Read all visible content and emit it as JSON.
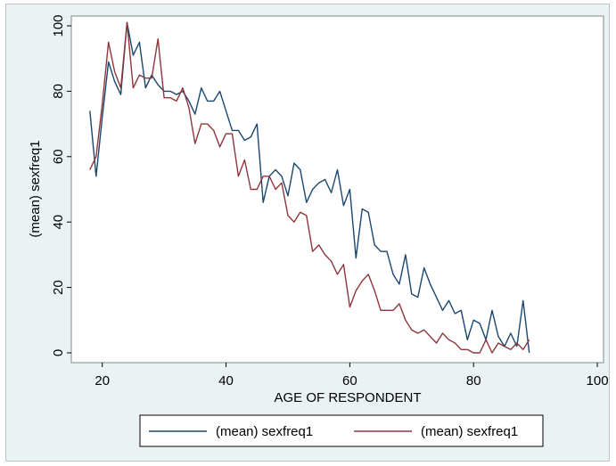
{
  "chart_data": {
    "type": "line",
    "title": "",
    "xlabel": "AGE OF RESPONDENT",
    "ylabel": "(mean) sexfreq1",
    "xlim": [
      15,
      101
    ],
    "ylim": [
      -3,
      103
    ],
    "xticks": [
      20,
      40,
      60,
      80,
      100
    ],
    "yticks": [
      0,
      20,
      40,
      60,
      80,
      100
    ],
    "grid": false,
    "legend_position": "bottom",
    "series": [
      {
        "name": "(mean) sexfreq1",
        "color": "#1a476f",
        "x": [
          18,
          19,
          20,
          21,
          22,
          23,
          24,
          25,
          26,
          27,
          28,
          29,
          30,
          31,
          32,
          33,
          34,
          35,
          36,
          37,
          38,
          39,
          40,
          41,
          42,
          43,
          44,
          45,
          46,
          47,
          48,
          49,
          50,
          51,
          52,
          53,
          54,
          55,
          56,
          57,
          58,
          59,
          60,
          61,
          62,
          63,
          64,
          65,
          66,
          67,
          68,
          69,
          70,
          71,
          72,
          73,
          74,
          75,
          76,
          77,
          78,
          79,
          80,
          81,
          82,
          83,
          84,
          85,
          86,
          87,
          88,
          89
        ],
        "values": [
          74,
          54,
          72,
          89,
          83,
          79,
          101,
          91,
          95,
          81,
          85,
          82,
          80,
          80,
          79,
          80,
          77,
          73,
          81,
          77,
          77,
          80,
          74,
          68,
          68,
          65,
          66,
          70,
          46,
          54,
          56,
          54,
          48,
          58,
          56,
          46,
          50,
          52,
          53,
          49,
          56,
          45,
          50,
          29,
          44,
          43,
          33,
          31,
          31,
          24,
          21,
          30,
          18,
          17,
          26,
          21,
          17,
          13,
          16,
          12,
          13,
          4,
          10,
          9,
          4,
          13,
          5,
          2,
          6,
          2,
          16,
          0
        ]
      },
      {
        "name": "(mean) sexfreq1",
        "color": "#90353b",
        "x": [
          18,
          19,
          20,
          21,
          22,
          23,
          24,
          25,
          26,
          27,
          28,
          29,
          30,
          31,
          32,
          33,
          34,
          35,
          36,
          37,
          38,
          39,
          40,
          41,
          42,
          43,
          44,
          45,
          46,
          47,
          48,
          49,
          50,
          51,
          52,
          53,
          54,
          55,
          56,
          57,
          58,
          59,
          60,
          61,
          62,
          63,
          64,
          65,
          66,
          67,
          68,
          69,
          70,
          71,
          72,
          73,
          74,
          75,
          76,
          77,
          78,
          79,
          80,
          81,
          82,
          83,
          84,
          85,
          86,
          87,
          88,
          89
        ],
        "values": [
          56,
          60,
          76,
          95,
          86,
          81,
          101,
          81,
          85,
          84,
          84,
          96,
          78,
          78,
          77,
          81,
          75,
          64,
          70,
          70,
          68,
          63,
          67,
          67,
          54,
          59,
          50,
          50,
          54,
          54,
          50,
          52,
          42,
          40,
          43,
          42,
          31,
          33,
          30,
          28,
          24,
          27,
          14,
          19,
          22,
          24,
          19,
          13,
          13,
          13,
          15,
          10,
          7,
          6,
          7,
          5,
          3,
          6,
          4,
          3,
          1,
          1,
          0,
          0,
          4,
          0,
          3,
          2,
          1,
          3,
          1,
          4
        ]
      }
    ]
  }
}
